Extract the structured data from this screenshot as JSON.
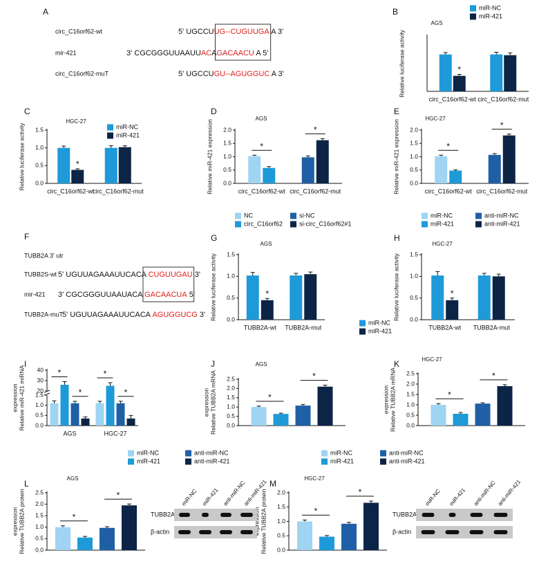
{
  "sequence_panels": [
    {
      "label": "A",
      "rows": [
        {
          "name": "circ_C16orf62-wt",
          "segments": [
            {
              "text": "5' UGCCU",
              "color": "#111111"
            },
            {
              "text": "UG--",
              "color": "#e0201b"
            },
            {
              "text": "CUGUUGA",
              "color": "#e0201b",
              "boxed": true
            },
            {
              "text": " A 3'",
              "color": "#111111"
            }
          ]
        },
        {
          "name": "mir-421",
          "segments": [
            {
              "text": "3' CGCGGGUUAAUU",
              "color": "#111111"
            },
            {
              "text": "AC",
              "color": "#e0201b"
            },
            {
              "text": "A",
              "color": "#111111"
            },
            {
              "text": "GACAACU",
              "color": "#e0201b",
              "boxed": true
            },
            {
              "text": " A 5'",
              "color": "#111111"
            }
          ]
        },
        {
          "name": "circ_C16orf62-muT",
          "segments": [
            {
              "text": "5' UGCCU",
              "color": "#111111"
            },
            {
              "text": "GU--AGUGGUC",
              "color": "#e0201b"
            },
            {
              "text": " A 3'",
              "color": "#111111"
            }
          ]
        }
      ]
    },
    {
      "label": "F",
      "heading": "TUBB2A 3' utr",
      "rows": [
        {
          "name": "TUBB2S-wt",
          "segments": [
            {
              "text": "5' UGUUAGAAAUUCACA ",
              "color": "#111111"
            },
            {
              "text": "CUGUUGAU",
              "color": "#e0201b",
              "boxed": true
            },
            {
              "text": " 3'",
              "color": "#111111"
            }
          ]
        },
        {
          "name": "mir-421",
          "segments": [
            {
              "text": "3' CGCGGGUUAAUACA ",
              "color": "#111111"
            },
            {
              "text": "GACAACUA",
              "color": "#e0201b",
              "boxed": true
            },
            {
              "text": " 5'",
              "color": "#111111"
            }
          ]
        },
        {
          "name": "TUBB2A-muT",
          "segments": [
            {
              "text": "5' UGUUAGAAAUUCACA ",
              "color": "#111111"
            },
            {
              "text": "AGUGGUCG",
              "color": "#e0201b"
            },
            {
              "text": " 3'",
              "color": "#111111"
            }
          ]
        }
      ]
    }
  ],
  "chart_data": [
    {
      "type": "bar",
      "panel": "B",
      "title": "AGS",
      "ylabel": "Relative luciferase activity",
      "categories": [
        "circ_C16orf62-wt",
        "circ_C16orf62-mut"
      ],
      "series": [
        {
          "name": "miR-NC",
          "color": "#1e9ad8",
          "values": [
            1.0,
            1.0
          ],
          "errors": [
            0.05,
            0.06
          ]
        },
        {
          "name": "miR-421",
          "color": "#0c2546",
          "values": [
            0.42,
            0.98
          ],
          "errors": [
            0.04,
            0.06
          ]
        }
      ],
      "ylim": [
        0,
        1.5
      ],
      "legend": true,
      "annotations": [
        "*"
      ]
    },
    {
      "type": "bar",
      "panel": "C",
      "title": "HGC-27",
      "ylabel": "Relative luciferase activity",
      "categories": [
        "circ_C16orf62-wt",
        "circ_C16orf62-mut"
      ],
      "series": [
        {
          "name": "miR-NC",
          "color": "#1e9ad8",
          "values": [
            1.0,
            1.0
          ],
          "errors": [
            0.05,
            0.06
          ]
        },
        {
          "name": "miR-421",
          "color": "#0c2546",
          "values": [
            0.38,
            1.02
          ],
          "errors": [
            0.03,
            0.04
          ]
        }
      ],
      "ylim": [
        0,
        1.5
      ],
      "yticks": [
        {
          "value": 0,
          "label": "0.0"
        },
        0.5,
        {
          "value": 1,
          "label": "1.0"
        },
        1.5
      ],
      "legend": true,
      "annotations": [
        "*"
      ]
    },
    {
      "type": "bar",
      "panel": "D",
      "title": "AGS",
      "ylabel": "Relative miR-421 expression",
      "categories": [
        "circ_C16orf62-wt",
        "circ_C16orf62-mut"
      ],
      "series": [
        {
          "name": "NC",
          "color": "#9fd4f2",
          "values": [
            1.02,
            null
          ],
          "errors": [
            0.04,
            null
          ]
        },
        {
          "name": "circ_C16orf62",
          "color": "#1e9ad8",
          "values": [
            0.58,
            null
          ],
          "errors": [
            0.05,
            null
          ]
        },
        {
          "name": "si-NC",
          "color": "#1f5fa6",
          "values": [
            null,
            0.98
          ],
          "errors": [
            null,
            0.05
          ]
        },
        {
          "name": "si-circ_C16orf62#1",
          "color": "#0c2546",
          "values": [
            null,
            1.62
          ],
          "errors": [
            null,
            0.06
          ]
        }
      ],
      "ylim": [
        0,
        2
      ],
      "yticks": [
        {
          "value": 0,
          "label": "0.0"
        },
        0.5,
        {
          "value": 1,
          "label": "1.0"
        },
        1.5,
        {
          "value": 2,
          "label": "2.0"
        }
      ],
      "legend": true,
      "annotations": [
        "*",
        "*"
      ]
    },
    {
      "type": "bar",
      "panel": "E",
      "title": "HGC-27",
      "ylabel": "Relative miR-421 expression",
      "categories": [
        "circ_C16orf62-wt",
        "circ_C16orf62-mut"
      ],
      "series": [
        {
          "name": "miR-NC",
          "color": "#9fd4f2",
          "values": [
            1.02,
            null
          ],
          "errors": [
            0.04,
            null
          ]
        },
        {
          "name": "miR-421",
          "color": "#1e9ad8",
          "values": [
            0.48,
            null
          ],
          "errors": [
            0.03,
            null
          ]
        },
        {
          "name": "anti-miR-NC",
          "color": "#1f5fa6",
          "values": [
            null,
            1.07
          ],
          "errors": [
            null,
            0.05
          ]
        },
        {
          "name": "anti-miR-421",
          "color": "#0c2546",
          "values": [
            null,
            1.8
          ],
          "errors": [
            null,
            0.05
          ]
        }
      ],
      "ylim": [
        0,
        2
      ],
      "yticks": [
        {
          "value": 0,
          "label": "0.0"
        },
        0.5,
        {
          "value": 1,
          "label": "1.0"
        },
        1.5,
        {
          "value": 2,
          "label": "2.0"
        }
      ],
      "legend": true,
      "annotations": [
        "*",
        "*"
      ]
    },
    {
      "type": "bar",
      "panel": "G",
      "title": "AGS",
      "ylabel": "Relative luciferase activity",
      "categories": [
        "TUBB2A-wt",
        "TUBB2A-mut"
      ],
      "series": [
        {
          "name": "miR-NC",
          "color": "#1e9ad8",
          "values": [
            1.02,
            1.02
          ],
          "errors": [
            0.07,
            0.05
          ]
        },
        {
          "name": "miR-421",
          "color": "#0c2546",
          "values": [
            0.45,
            1.05
          ],
          "errors": [
            0.04,
            0.05
          ]
        }
      ],
      "ylim": [
        0,
        1.5
      ],
      "yticks": [
        {
          "value": 0,
          "label": "0.0"
        },
        0.5,
        {
          "value": 1,
          "label": "1.0"
        },
        1.5
      ],
      "legend": true,
      "annotations": [
        "*"
      ]
    },
    {
      "type": "bar",
      "panel": "H",
      "title": "HGC-27",
      "ylabel": "Relative luciferase activity",
      "categories": [
        "TUBB2A-wt",
        "TUBB2A-mut"
      ],
      "series": [
        {
          "name": "miR-NC",
          "color": "#1e9ad8",
          "values": [
            1.02,
            1.02
          ],
          "errors": [
            0.09,
            0.05
          ]
        },
        {
          "name": "miR-421",
          "color": "#0c2546",
          "values": [
            0.45,
            1.0
          ],
          "errors": [
            0.05,
            0.05
          ]
        }
      ],
      "ylim": [
        0,
        1.5
      ],
      "yticks": [
        {
          "value": 0,
          "label": "0.0"
        },
        0.5,
        {
          "value": 1,
          "label": "1.0"
        },
        1.5
      ],
      "legend": false,
      "annotations": [
        "*"
      ]
    },
    {
      "type": "bar",
      "panel": "I",
      "ylabel": [
        "Relative miR-421 miRNA",
        "expression"
      ],
      "categories": [
        "AGS",
        "HGC-27"
      ],
      "series": [
        {
          "name": "miR-NC",
          "color": "#9fd4f2",
          "values": [
            1.1,
            1.1
          ],
          "errors": [
            0.12,
            0.1
          ]
        },
        {
          "name": "miR-421",
          "color": "#1e9ad8",
          "values": [
            26,
            25
          ],
          "errors": [
            3,
            3
          ]
        },
        {
          "name": "anti-miR-NC",
          "color": "#1f5fa6",
          "values": [
            1.1,
            1.1
          ],
          "errors": [
            0.1,
            0.1
          ]
        },
        {
          "name": "anti-miR-421",
          "color": "#0c2546",
          "values": [
            0.35,
            0.35
          ],
          "errors": [
            0.08,
            0.15
          ]
        }
      ],
      "ylim": [
        0,
        40
      ],
      "ybreak": [
        1.5,
        20
      ],
      "yticks": [
        {
          "value": 0,
          "label": "0.0"
        },
        0.5,
        {
          "value": 1,
          "label": "1.0"
        },
        1.5,
        20,
        30,
        40
      ],
      "legend": true,
      "annotations": [
        "*",
        "*",
        "*",
        "*"
      ]
    },
    {
      "type": "bar",
      "panel": "J",
      "title": "AGS",
      "ylabel": [
        "Relative TUBB2A mRNA",
        "expression"
      ],
      "categories": [
        null
      ],
      "series": [
        {
          "name": "miR-NC",
          "color": "#9fd4f2",
          "values": [
            1.0
          ],
          "errors": [
            0.05
          ]
        },
        {
          "name": "miR-421",
          "color": "#1e9ad8",
          "values": [
            0.63
          ],
          "errors": [
            0.04
          ]
        },
        {
          "name": "anti-miR-NC",
          "color": "#1f5fa6",
          "values": [
            1.08
          ],
          "errors": [
            0.06
          ]
        },
        {
          "name": "anti-miR-421",
          "color": "#0c2546",
          "values": [
            2.1
          ],
          "errors": [
            0.08
          ]
        }
      ],
      "ylim": [
        0,
        2.5
      ],
      "yticks": [
        {
          "value": 0,
          "label": "0.0"
        },
        0.5,
        {
          "value": 1,
          "label": "1.0"
        },
        1.5,
        {
          "value": 2,
          "label": "2.0"
        },
        2.5
      ],
      "legend": true,
      "annotations": [
        "*",
        "*"
      ]
    },
    {
      "type": "bar",
      "panel": "K",
      "title": "HGC-27",
      "ylabel": [
        "Relative TUBB2A mRNA",
        "expression"
      ],
      "categories": [
        null
      ],
      "series": [
        {
          "name": "miR-NC",
          "color": "#9fd4f2",
          "values": [
            1.0
          ],
          "errors": [
            0.06
          ]
        },
        {
          "name": "miR-421",
          "color": "#1e9ad8",
          "values": [
            0.57
          ],
          "errors": [
            0.06
          ]
        },
        {
          "name": "anti-miR-NC",
          "color": "#1f5fa6",
          "values": [
            1.06
          ],
          "errors": [
            0.04
          ]
        },
        {
          "name": "anti-miR-421",
          "color": "#0c2546",
          "values": [
            1.9
          ],
          "errors": [
            0.07
          ]
        }
      ],
      "ylim": [
        0,
        2.5
      ],
      "yticks": [
        {
          "value": 0,
          "label": "0.0"
        },
        0.5,
        {
          "value": 1,
          "label": "1.0"
        },
        1.5,
        {
          "value": 2,
          "label": "2.0"
        },
        2.5
      ],
      "legend": false,
      "annotations": [
        "*",
        "*"
      ]
    },
    {
      "type": "bar",
      "panel": "L",
      "title": "AGS",
      "ylabel": [
        "Relative TUBB2A protein",
        "expression"
      ],
      "categories": [
        null
      ],
      "series": [
        {
          "name": "miR-NC",
          "color": "#9fd4f2",
          "values": [
            1.0
          ],
          "errors": [
            0.06
          ]
        },
        {
          "name": "miR-421",
          "color": "#1e9ad8",
          "values": [
            0.55
          ],
          "errors": [
            0.05
          ]
        },
        {
          "name": "anti-miR-NC",
          "color": "#1f5fa6",
          "values": [
            0.97
          ],
          "errors": [
            0.05
          ]
        },
        {
          "name": "anti-miR-421",
          "color": "#0c2546",
          "values": [
            1.95
          ],
          "errors": [
            0.06
          ]
        }
      ],
      "ylim": [
        0,
        2.5
      ],
      "yticks": [
        {
          "value": 0,
          "label": "0.0"
        },
        0.5,
        {
          "value": 1,
          "label": "1.0"
        },
        1.5,
        {
          "value": 2,
          "label": "2.0"
        },
        2.5
      ],
      "legend": false,
      "annotations": [
        "*",
        "*"
      ]
    },
    {
      "type": "bar",
      "panel": "M",
      "title": "HGC-27",
      "ylabel": [
        "Relative TUBB2A protein",
        "expression"
      ],
      "categories": [
        null
      ],
      "series": [
        {
          "name": "miR-NC",
          "color": "#9fd4f2",
          "values": [
            1.0
          ],
          "errors": [
            0.05
          ]
        },
        {
          "name": "miR-421",
          "color": "#1e9ad8",
          "values": [
            0.47
          ],
          "errors": [
            0.04
          ]
        },
        {
          "name": "anti-miR-NC",
          "color": "#1f5fa6",
          "values": [
            0.92
          ],
          "errors": [
            0.05
          ]
        },
        {
          "name": "anti-miR-421",
          "color": "#0c2546",
          "values": [
            1.65
          ],
          "errors": [
            0.06
          ]
        }
      ],
      "ylim": [
        0,
        2
      ],
      "yticks": [
        {
          "value": 0,
          "label": "0.0"
        },
        0.5,
        {
          "value": 1,
          "label": "1.0"
        },
        1.5,
        {
          "value": 2,
          "label": "2.0"
        }
      ],
      "legend": false,
      "annotations": [
        "*",
        "*"
      ]
    }
  ],
  "blots": [
    {
      "lanes": [
        "miR-NC",
        "miR-421",
        "anti-miR-NC",
        "anti-miR-421"
      ],
      "rows": [
        "TUBB2A",
        "β-actin"
      ]
    },
    {
      "lanes": [
        "miR-NC",
        "miR-421",
        "anti-miR-NC",
        "anti-miR-421"
      ],
      "rows": [
        "TUBB2A",
        "β-actin"
      ]
    }
  ]
}
